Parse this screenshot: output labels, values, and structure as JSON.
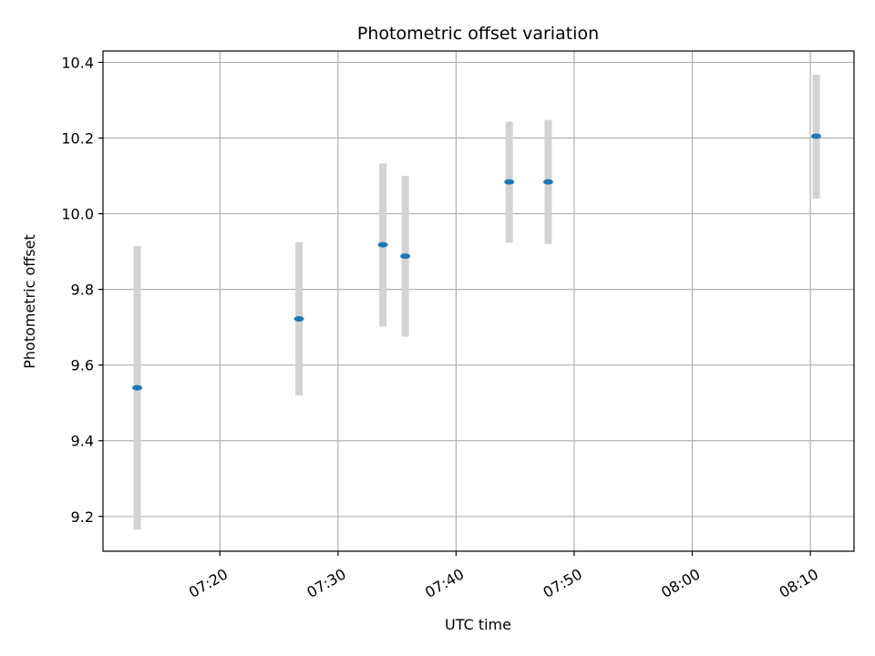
{
  "chart_data": {
    "type": "scatter",
    "title": "Photometric offset variation",
    "xlabel": "UTC time",
    "ylabel": "Photometric offset",
    "x_axis_kind": "time",
    "xlim": [
      "07:10:06",
      "08:13:42"
    ],
    "ylim": [
      9.108,
      10.43
    ],
    "grid": true,
    "x_ticks": [
      "07:20",
      "07:30",
      "07:40",
      "07:50",
      "08:00",
      "08:10"
    ],
    "y_ticks": [
      9.2,
      9.4,
      9.6,
      9.8,
      10.0,
      10.2,
      10.4
    ],
    "y_tick_labels": [
      "9.2",
      "9.4",
      "9.6",
      "9.8",
      "10.0",
      "10.2",
      "10.4"
    ],
    "point_color": "#1f77b4",
    "errorbar_color": "#d3d3d3",
    "points": [
      {
        "time": "07:13:00",
        "y": 9.54,
        "yerr_low": 9.165,
        "yerr_high": 9.915
      },
      {
        "time": "07:26:42",
        "y": 9.722,
        "yerr_low": 9.52,
        "yerr_high": 9.925
      },
      {
        "time": "07:33:48",
        "y": 9.918,
        "yerr_low": 9.702,
        "yerr_high": 10.133
      },
      {
        "time": "07:35:42",
        "y": 9.888,
        "yerr_low": 9.675,
        "yerr_high": 10.1
      },
      {
        "time": "07:44:30",
        "y": 10.084,
        "yerr_low": 9.923,
        "yerr_high": 10.243
      },
      {
        "time": "07:47:48",
        "y": 10.084,
        "yerr_low": 9.92,
        "yerr_high": 10.248
      },
      {
        "time": "08:10:30",
        "y": 10.205,
        "yerr_low": 10.04,
        "yerr_high": 10.368
      }
    ]
  }
}
